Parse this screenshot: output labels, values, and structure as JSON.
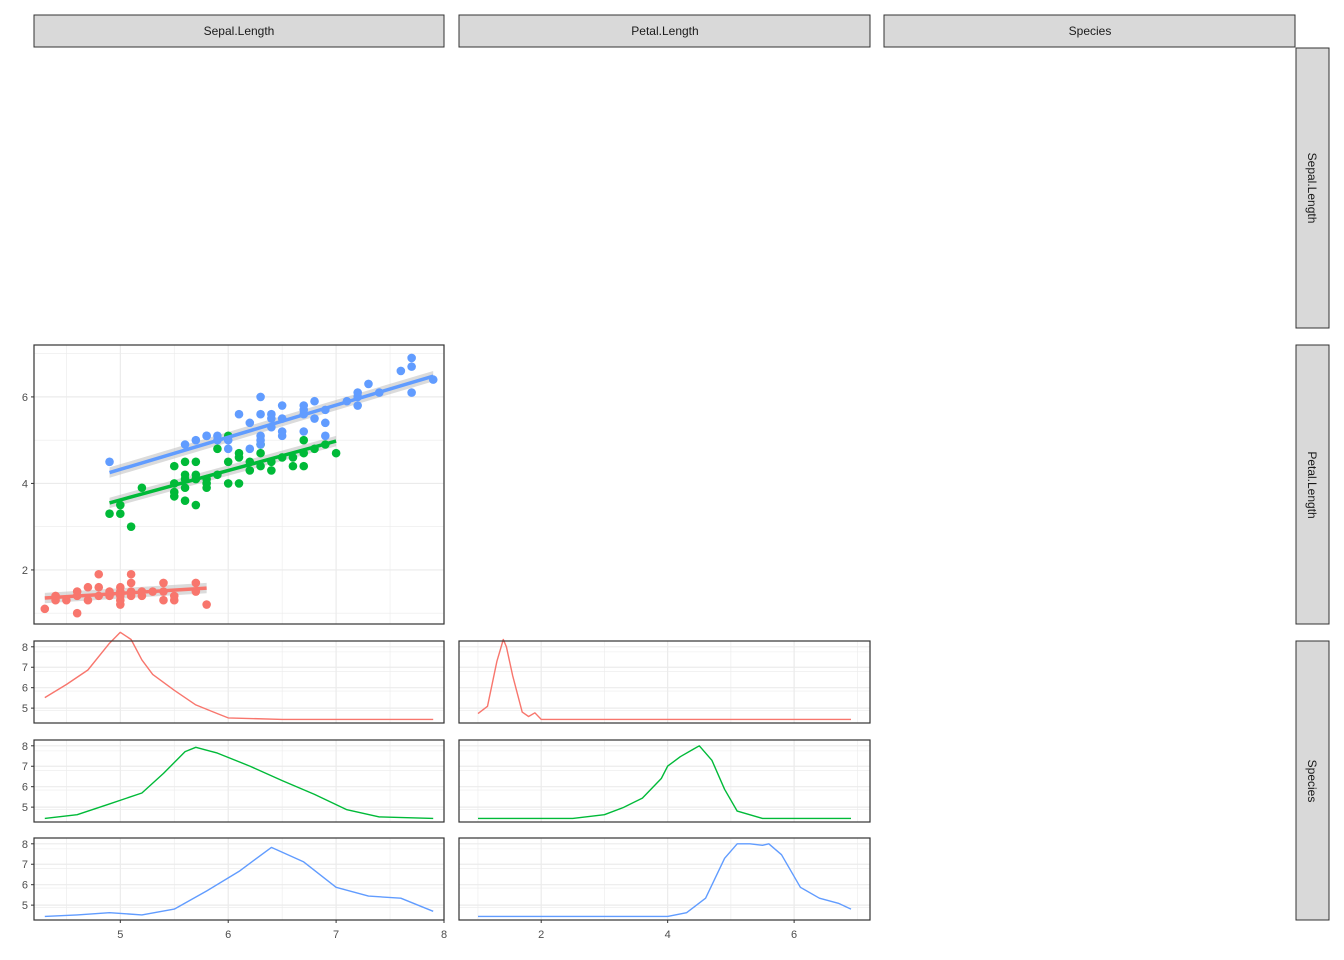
{
  "strips": {
    "columns": [
      "Sepal.Length",
      "Petal.Length",
      "Species"
    ],
    "rows": [
      "Sepal.Length",
      "Petal.Length",
      "Species"
    ]
  },
  "colors": {
    "setosa": "#F8766D",
    "versicolor": "#00BA38",
    "virginica": "#619CFF",
    "strip_fill": "#D9D9D9",
    "panel_border": "#333333",
    "grid": "#EBEBEB",
    "ribbon": "#BEBEBE"
  },
  "chart_data": [
    {
      "panel": "Petal.Length vs Sepal.Length",
      "type": "scatter",
      "xlim": [
        4.2,
        8.0
      ],
      "ylim": [
        0.75,
        7.2
      ],
      "xticks": [
        5,
        6,
        7,
        8
      ],
      "yticks": [
        2,
        4,
        6
      ],
      "grid": true,
      "series": [
        {
          "color": "#F8766D",
          "points": [
            [
              4.3,
              1.1
            ],
            [
              4.4,
              1.3
            ],
            [
              4.4,
              1.4
            ],
            [
              4.5,
              1.3
            ],
            [
              4.6,
              1.0
            ],
            [
              4.6,
              1.4
            ],
            [
              4.6,
              1.5
            ],
            [
              4.7,
              1.3
            ],
            [
              4.7,
              1.6
            ],
            [
              4.8,
              1.4
            ],
            [
              4.8,
              1.6
            ],
            [
              4.8,
              1.9
            ],
            [
              4.9,
              1.4
            ],
            [
              4.9,
              1.5
            ],
            [
              5.0,
              1.2
            ],
            [
              5.0,
              1.3
            ],
            [
              5.0,
              1.4
            ],
            [
              5.0,
              1.5
            ],
            [
              5.0,
              1.6
            ],
            [
              5.1,
              1.4
            ],
            [
              5.1,
              1.5
            ],
            [
              5.1,
              1.7
            ],
            [
              5.1,
              1.9
            ],
            [
              5.2,
              1.4
            ],
            [
              5.2,
              1.5
            ],
            [
              5.3,
              1.5
            ],
            [
              5.4,
              1.3
            ],
            [
              5.4,
              1.5
            ],
            [
              5.4,
              1.7
            ],
            [
              5.5,
              1.3
            ],
            [
              5.5,
              1.4
            ],
            [
              5.7,
              1.5
            ],
            [
              5.7,
              1.7
            ],
            [
              5.8,
              1.2
            ]
          ],
          "fit": {
            "x": [
              4.3,
              5.8
            ],
            "y": [
              1.35,
              1.58
            ]
          }
        },
        {
          "color": "#00BA38",
          "points": [
            [
              4.9,
              3.3
            ],
            [
              5.0,
              3.3
            ],
            [
              5.0,
              3.5
            ],
            [
              5.1,
              3.0
            ],
            [
              5.2,
              3.9
            ],
            [
              5.5,
              3.7
            ],
            [
              5.5,
              3.8
            ],
            [
              5.5,
              4.0
            ],
            [
              5.5,
              4.4
            ],
            [
              5.6,
              3.6
            ],
            [
              5.6,
              3.9
            ],
            [
              5.6,
              4.1
            ],
            [
              5.6,
              4.2
            ],
            [
              5.6,
              4.5
            ],
            [
              5.7,
              3.5
            ],
            [
              5.7,
              4.1
            ],
            [
              5.7,
              4.2
            ],
            [
              5.7,
              4.5
            ],
            [
              5.8,
              3.9
            ],
            [
              5.8,
              4.0
            ],
            [
              5.8,
              4.1
            ],
            [
              5.9,
              4.2
            ],
            [
              5.9,
              4.8
            ],
            [
              6.0,
              4.0
            ],
            [
              6.0,
              4.5
            ],
            [
              6.0,
              5.1
            ],
            [
              6.1,
              4.0
            ],
            [
              6.1,
              4.6
            ],
            [
              6.1,
              4.7
            ],
            [
              6.2,
              4.3
            ],
            [
              6.2,
              4.5
            ],
            [
              6.3,
              4.4
            ],
            [
              6.3,
              4.7
            ],
            [
              6.3,
              4.9
            ],
            [
              6.4,
              4.3
            ],
            [
              6.4,
              4.5
            ],
            [
              6.5,
              4.6
            ],
            [
              6.6,
              4.4
            ],
            [
              6.6,
              4.6
            ],
            [
              6.7,
              4.4
            ],
            [
              6.7,
              4.7
            ],
            [
              6.7,
              5.0
            ],
            [
              6.8,
              4.8
            ],
            [
              6.9,
              4.9
            ],
            [
              7.0,
              4.7
            ]
          ],
          "fit": {
            "x": [
              4.9,
              7.0
            ],
            "y": [
              3.55,
              4.98
            ]
          }
        },
        {
          "color": "#619CFF",
          "points": [
            [
              4.9,
              4.5
            ],
            [
              5.6,
              4.9
            ],
            [
              5.7,
              5.0
            ],
            [
              5.8,
              5.1
            ],
            [
              5.8,
              5.1
            ],
            [
              5.9,
              5.1
            ],
            [
              5.9,
              5.0
            ],
            [
              6.0,
              4.8
            ],
            [
              6.0,
              5.0
            ],
            [
              6.1,
              5.6
            ],
            [
              6.2,
              4.8
            ],
            [
              6.2,
              5.4
            ],
            [
              6.3,
              4.9
            ],
            [
              6.3,
              5.0
            ],
            [
              6.3,
              5.1
            ],
            [
              6.3,
              5.6
            ],
            [
              6.3,
              6.0
            ],
            [
              6.4,
              5.3
            ],
            [
              6.4,
              5.5
            ],
            [
              6.4,
              5.6
            ],
            [
              6.5,
              5.1
            ],
            [
              6.5,
              5.2
            ],
            [
              6.5,
              5.5
            ],
            [
              6.5,
              5.8
            ],
            [
              6.7,
              5.2
            ],
            [
              6.7,
              5.6
            ],
            [
              6.7,
              5.7
            ],
            [
              6.7,
              5.8
            ],
            [
              6.8,
              5.5
            ],
            [
              6.8,
              5.9
            ],
            [
              6.9,
              5.1
            ],
            [
              6.9,
              5.4
            ],
            [
              6.9,
              5.7
            ],
            [
              7.1,
              5.9
            ],
            [
              7.2,
              5.8
            ],
            [
              7.2,
              6.0
            ],
            [
              7.2,
              6.1
            ],
            [
              7.3,
              6.3
            ],
            [
              7.4,
              6.1
            ],
            [
              7.6,
              6.6
            ],
            [
              7.7,
              6.1
            ],
            [
              7.7,
              6.7
            ],
            [
              7.7,
              6.9
            ],
            [
              7.9,
              6.4
            ]
          ],
          "fit": {
            "x": [
              4.9,
              7.9
            ],
            "y": [
              4.25,
              6.48
            ]
          }
        }
      ]
    },
    {
      "panel": "Sepal.Length density by Species",
      "type": "line",
      "xlim": [
        4.2,
        8.0
      ],
      "xticks": [
        5,
        6,
        7,
        8
      ],
      "yticks": [
        5,
        6,
        7,
        8
      ],
      "grid": true,
      "series": [
        {
          "color": "#F8766D",
          "x": [
            4.3,
            4.5,
            4.7,
            4.9,
            5.0,
            5.1,
            5.2,
            5.3,
            5.5,
            5.7,
            5.9,
            6.0,
            6.5,
            7.0,
            7.5,
            7.9
          ],
          "y": [
            0.3,
            0.48,
            0.68,
            1.05,
            1.2,
            1.1,
            0.82,
            0.62,
            0.4,
            0.2,
            0.08,
            0.02,
            0.0,
            0.0,
            0.0,
            0.0
          ]
        },
        {
          "color": "#00BA38",
          "x": [
            4.3,
            4.6,
            4.9,
            5.2,
            5.4,
            5.6,
            5.7,
            5.9,
            6.2,
            6.5,
            6.8,
            7.1,
            7.4,
            7.9
          ],
          "y": [
            0.0,
            0.05,
            0.2,
            0.35,
            0.62,
            0.92,
            0.98,
            0.9,
            0.72,
            0.52,
            0.33,
            0.12,
            0.02,
            0.0
          ]
        },
        {
          "color": "#619CFF",
          "x": [
            4.3,
            4.6,
            4.9,
            5.2,
            5.5,
            5.8,
            6.1,
            6.4,
            6.7,
            7.0,
            7.3,
            7.6,
            7.9
          ],
          "y": [
            0.0,
            0.02,
            0.05,
            0.02,
            0.1,
            0.35,
            0.62,
            0.95,
            0.75,
            0.4,
            0.28,
            0.25,
            0.07
          ]
        }
      ]
    },
    {
      "panel": "Petal.Length density by Species",
      "type": "line",
      "xlim": [
        0.7,
        7.2
      ],
      "xticks": [
        2,
        4,
        6
      ],
      "grid": true,
      "series": [
        {
          "color": "#F8766D",
          "x": [
            1.0,
            1.15,
            1.3,
            1.4,
            1.45,
            1.55,
            1.7,
            1.8,
            1.9,
            2.0,
            2.5,
            4.0,
            6.9
          ],
          "y": [
            0.08,
            0.18,
            0.8,
            1.1,
            1.0,
            0.6,
            0.1,
            0.04,
            0.09,
            0.0,
            0.0,
            0.0,
            0.0
          ]
        },
        {
          "color": "#00BA38",
          "x": [
            1.0,
            2.5,
            3.0,
            3.3,
            3.6,
            3.9,
            4.0,
            4.2,
            4.4,
            4.5,
            4.7,
            4.9,
            5.1,
            5.5,
            6.9
          ],
          "y": [
            0.0,
            0.0,
            0.05,
            0.15,
            0.28,
            0.55,
            0.72,
            0.85,
            0.95,
            1.0,
            0.8,
            0.4,
            0.1,
            0.0,
            0.0
          ]
        },
        {
          "color": "#619CFF",
          "x": [
            1.0,
            4.0,
            4.3,
            4.6,
            4.9,
            5.1,
            5.3,
            5.5,
            5.6,
            5.8,
            6.1,
            6.4,
            6.7,
            6.9
          ],
          "y": [
            0.0,
            0.0,
            0.05,
            0.25,
            0.8,
            1.0,
            1.0,
            0.98,
            1.0,
            0.85,
            0.4,
            0.25,
            0.18,
            0.1
          ]
        }
      ]
    }
  ]
}
